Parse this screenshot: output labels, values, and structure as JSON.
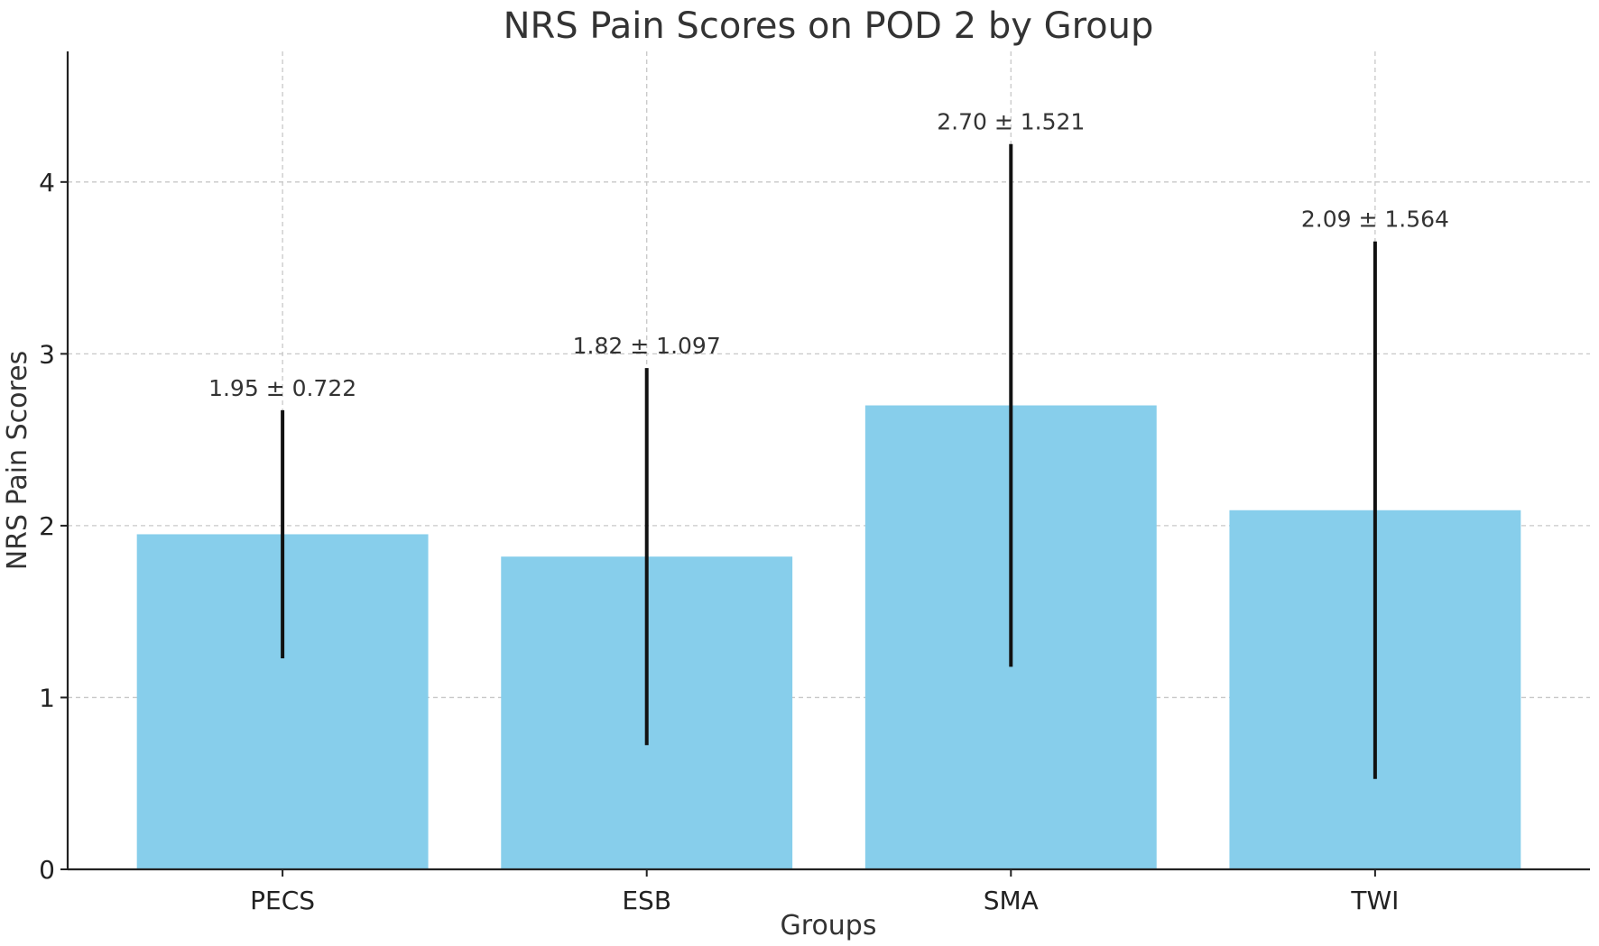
{
  "chart_data": {
    "type": "bar",
    "title": "NRS Pain Scores on POD 2 by Group",
    "xlabel": "Groups",
    "ylabel": "NRS Pain Scores",
    "categories": [
      "PECS",
      "ESB",
      "SMA",
      "TWI"
    ],
    "values": [
      1.95,
      1.82,
      2.7,
      2.09
    ],
    "errors": [
      0.722,
      1.097,
      1.521,
      1.564
    ],
    "data_labels": [
      "1.95 ± 0.722",
      "1.82 ± 1.097",
      "2.70 ± 1.521",
      "2.09 ± 1.564"
    ],
    "yticks": [
      0,
      1,
      2,
      3,
      4
    ],
    "ylim": [
      0,
      4.76
    ],
    "grid": true,
    "bar_color": "#87CEEB",
    "error_color": "#111111"
  }
}
